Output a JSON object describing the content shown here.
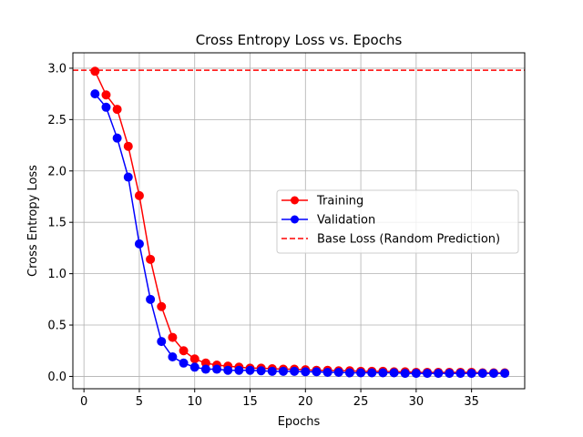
{
  "chart_data": {
    "type": "line",
    "title": "Cross Entropy Loss vs. Epochs",
    "xlabel": "Epochs",
    "ylabel": "Cross Entropy Loss",
    "xlim": [
      -1,
      39.8
    ],
    "ylim": [
      -0.12,
      3.15
    ],
    "xticks": [
      0,
      5,
      10,
      15,
      20,
      25,
      30,
      35
    ],
    "yticks": [
      0.0,
      0.5,
      1.0,
      1.5,
      2.0,
      2.5,
      3.0
    ],
    "xtick_labels": [
      "0",
      "5",
      "10",
      "15",
      "20",
      "25",
      "30",
      "35"
    ],
    "ytick_labels": [
      "0.0",
      "0.5",
      "1.0",
      "1.5",
      "2.0",
      "2.5",
      "3.0"
    ],
    "grid": true,
    "legend_position": "center-right",
    "x": [
      1,
      2,
      3,
      4,
      5,
      6,
      7,
      8,
      9,
      10,
      11,
      12,
      13,
      14,
      15,
      16,
      17,
      18,
      19,
      20,
      21,
      22,
      23,
      24,
      25,
      26,
      27,
      28,
      29,
      30,
      31,
      32,
      33,
      34,
      35,
      36,
      37,
      38
    ],
    "series": [
      {
        "name": "Training",
        "color": "#ff0000",
        "style": "solid-marker",
        "values": [
          2.97,
          2.74,
          2.6,
          2.24,
          1.76,
          1.14,
          0.68,
          0.38,
          0.25,
          0.17,
          0.13,
          0.11,
          0.1,
          0.09,
          0.08,
          0.08,
          0.075,
          0.07,
          0.07,
          0.065,
          0.06,
          0.06,
          0.055,
          0.055,
          0.05,
          0.05,
          0.05,
          0.045,
          0.045,
          0.04,
          0.04,
          0.04,
          0.04,
          0.04,
          0.04,
          0.035,
          0.035,
          0.035
        ]
      },
      {
        "name": "Validation",
        "color": "#0000ff",
        "style": "solid-marker",
        "values": [
          2.75,
          2.62,
          2.32,
          1.94,
          1.29,
          0.75,
          0.34,
          0.19,
          0.13,
          0.09,
          0.07,
          0.07,
          0.06,
          0.06,
          0.06,
          0.055,
          0.05,
          0.05,
          0.05,
          0.045,
          0.045,
          0.04,
          0.04,
          0.035,
          0.035,
          0.035,
          0.035,
          0.035,
          0.03,
          0.03,
          0.03,
          0.03,
          0.03,
          0.03,
          0.03,
          0.03,
          0.03,
          0.03
        ]
      }
    ],
    "reference_lines": [
      {
        "name": "Base Loss (Random Prediction)",
        "color": "#ff0000",
        "style": "dashed",
        "y": 2.98
      }
    ]
  }
}
